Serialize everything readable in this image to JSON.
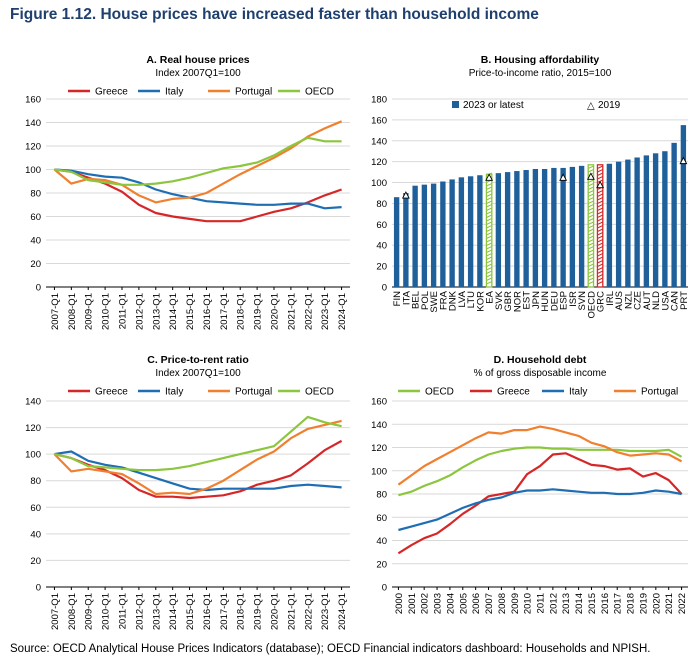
{
  "figure": {
    "title": "Figure 1.12. House prices have increased faster than household income",
    "source": "Source: OECD Analytical House Prices Indicators (database); OECD Financial indicators dashboard: Households and NPISH."
  },
  "colors": {
    "greece": "#d62728",
    "italy": "#1f6eb4",
    "portugal": "#f08030",
    "oecd": "#8cc63f",
    "bar": "#1f5f9a",
    "title": "#1f3f6e"
  },
  "chart_data": [
    {
      "id": "A",
      "type": "line",
      "title": "A. Real house prices",
      "subtitle": "Index 2007Q1=100",
      "x": [
        "2007-Q1",
        "2008-Q1",
        "2009-Q1",
        "2010-Q1",
        "2011-Q1",
        "2012-Q1",
        "2013-Q1",
        "2014-Q1",
        "2015-Q1",
        "2016-Q1",
        "2017-Q1",
        "2018-Q1",
        "2019-Q1",
        "2020-Q1",
        "2021-Q1",
        "2022-Q1",
        "2023-Q1",
        "2024-Q1"
      ],
      "ylim": [
        0,
        160
      ],
      "yticks": [
        0,
        20,
        40,
        60,
        80,
        100,
        120,
        140,
        160
      ],
      "legend": [
        "Greece",
        "Italy",
        "Portugal",
        "OECD"
      ],
      "series": [
        {
          "name": "Greece",
          "color": "#d62728",
          "values": [
            100,
            98,
            93,
            88,
            81,
            70,
            63,
            60,
            58,
            56,
            56,
            56,
            60,
            64,
            67,
            72,
            78,
            83
          ]
        },
        {
          "name": "Italy",
          "color": "#1f6eb4",
          "values": [
            100,
            99,
            96,
            94,
            93,
            89,
            83,
            79,
            76,
            73,
            72,
            71,
            70,
            70,
            71,
            71,
            67,
            68
          ]
        },
        {
          "name": "Portugal",
          "color": "#f08030",
          "values": [
            100,
            88,
            92,
            91,
            87,
            78,
            72,
            75,
            76,
            80,
            88,
            96,
            103,
            110,
            118,
            128,
            135,
            141
          ]
        },
        {
          "name": "OECD",
          "color": "#8cc63f",
          "values": [
            100,
            98,
            91,
            89,
            87,
            87,
            88,
            90,
            93,
            97,
            101,
            103,
            106,
            112,
            120,
            127,
            124,
            124
          ]
        }
      ]
    },
    {
      "id": "B",
      "type": "bar",
      "title": "B. Housing affordability",
      "subtitle": "Price-to-income ratio, 2015=100",
      "ylim": [
        0,
        180
      ],
      "yticks": [
        0,
        20,
        40,
        60,
        80,
        100,
        120,
        140,
        160,
        180
      ],
      "legend": [
        "2023 or latest",
        "2019"
      ],
      "categories": [
        "FIN",
        "ITA",
        "BEL",
        "POL",
        "SWE",
        "FRA",
        "DNK",
        "LVA",
        "LTU",
        "KOR",
        "EA",
        "SVK",
        "GBR",
        "NOR",
        "EST",
        "JPN",
        "HUN",
        "DEU",
        "ESP",
        "ISR",
        "SVN",
        "OECD",
        "GRC",
        "IRL",
        "AUS",
        "NZL",
        "CZE",
        "AUT",
        "NLD",
        "USA",
        "CAN",
        "PRT"
      ],
      "values": [
        86,
        90,
        97,
        98,
        99,
        101,
        103,
        105,
        106,
        107,
        108,
        109,
        110,
        111,
        112,
        113,
        113,
        114,
        114,
        115,
        116,
        117,
        117,
        118,
        120,
        122,
        124,
        126,
        128,
        130,
        138,
        155
      ],
      "values_2019": [
        null,
        88,
        null,
        null,
        null,
        null,
        null,
        null,
        null,
        null,
        105,
        null,
        null,
        null,
        null,
        null,
        null,
        null,
        105,
        null,
        null,
        106,
        98,
        null,
        null,
        null,
        null,
        null,
        null,
        null,
        null,
        121
      ],
      "highlight": {
        "EA": "#8cc63f",
        "OECD": "#8cc63f",
        "GRC": "#d62728"
      }
    },
    {
      "id": "C",
      "type": "line",
      "title": "C. Price-to-rent ratio",
      "subtitle": "Index 2007Q1=100",
      "x": [
        "2007-Q1",
        "2008-Q1",
        "2009-Q1",
        "2010-Q1",
        "2011-Q1",
        "2012-Q1",
        "2013-Q1",
        "2014-Q1",
        "2015-Q1",
        "2016-Q1",
        "2017-Q1",
        "2018-Q1",
        "2019-Q1",
        "2020-Q1",
        "2021-Q1",
        "2022-Q1",
        "2023-Q1",
        "2024-Q1"
      ],
      "ylim": [
        0,
        140
      ],
      "yticks": [
        0,
        20,
        40,
        60,
        80,
        100,
        120,
        140
      ],
      "legend": [
        "Greece",
        "Italy",
        "Portugal",
        "OECD"
      ],
      "series": [
        {
          "name": "Greece",
          "color": "#d62728",
          "values": [
            100,
            97,
            92,
            88,
            82,
            73,
            68,
            68,
            67,
            68,
            69,
            72,
            77,
            80,
            84,
            93,
            103,
            110
          ]
        },
        {
          "name": "Italy",
          "color": "#1f6eb4",
          "values": [
            100,
            102,
            95,
            92,
            90,
            86,
            82,
            78,
            74,
            73,
            74,
            74,
            74,
            74,
            76,
            77,
            76,
            75
          ]
        },
        {
          "name": "Portugal",
          "color": "#f08030",
          "values": [
            100,
            87,
            89,
            87,
            85,
            78,
            70,
            71,
            70,
            74,
            80,
            88,
            96,
            102,
            112,
            119,
            122,
            125
          ]
        },
        {
          "name": "OECD",
          "color": "#8cc63f",
          "values": [
            100,
            97,
            91,
            90,
            89,
            88,
            88,
            89,
            91,
            94,
            97,
            100,
            103,
            106,
            117,
            128,
            124,
            121
          ]
        }
      ]
    },
    {
      "id": "D",
      "type": "line",
      "title": "D. Household debt",
      "subtitle": "% of gross disposable income",
      "x": [
        "2000",
        "2001",
        "2002",
        "2003",
        "2004",
        "2005",
        "2006",
        "2007",
        "2008",
        "2009",
        "2010",
        "2011",
        "2012",
        "2013",
        "2014",
        "2015",
        "2016",
        "2017",
        "2018",
        "2019",
        "2020",
        "2021",
        "2022"
      ],
      "ylim": [
        0,
        160
      ],
      "yticks": [
        0,
        20,
        40,
        60,
        80,
        100,
        120,
        140,
        160
      ],
      "legend": [
        "OECD",
        "Greece",
        "Italy",
        "Portugal"
      ],
      "series": [
        {
          "name": "OECD",
          "color": "#8cc63f",
          "values": [
            79,
            82,
            87,
            91,
            96,
            103,
            109,
            114,
            117,
            119,
            120,
            120,
            119,
            119,
            118,
            118,
            118,
            118,
            117,
            117,
            117,
            118,
            112
          ]
        },
        {
          "name": "Greece",
          "color": "#d62728",
          "values": [
            29,
            36,
            42,
            46,
            54,
            63,
            70,
            78,
            80,
            82,
            97,
            104,
            114,
            115,
            110,
            105,
            104,
            101,
            102,
            95,
            98,
            92,
            80
          ]
        },
        {
          "name": "Italy",
          "color": "#1f6eb4",
          "values": [
            49,
            52,
            55,
            58,
            63,
            68,
            72,
            75,
            77,
            81,
            83,
            83,
            84,
            83,
            82,
            81,
            81,
            80,
            80,
            81,
            83,
            82,
            80
          ]
        },
        {
          "name": "Portugal",
          "color": "#f08030",
          "values": [
            88,
            96,
            104,
            110,
            116,
            122,
            128,
            133,
            132,
            135,
            135,
            138,
            136,
            133,
            130,
            124,
            121,
            116,
            113,
            114,
            115,
            114,
            108
          ]
        }
      ]
    }
  ]
}
